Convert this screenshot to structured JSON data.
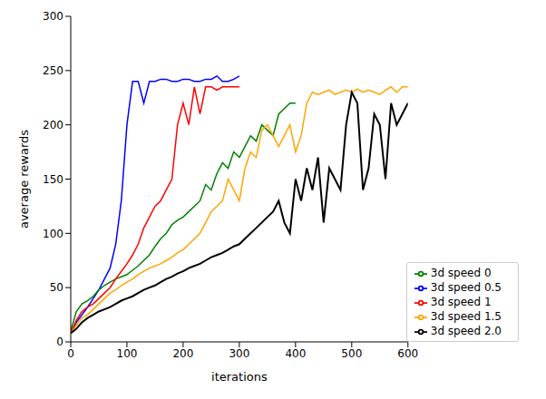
{
  "chart_data": {
    "type": "line",
    "x_label": "iterations",
    "y_label": "average rewards",
    "xlim": [
      0,
      600
    ],
    "xticks": [
      0,
      100,
      200,
      300,
      400,
      500,
      600
    ],
    "ylim": [
      0,
      300
    ],
    "yticks": [
      0,
      50,
      100,
      150,
      200,
      250,
      300
    ],
    "grid": false,
    "legend": "lower right",
    "x": [
      0,
      10,
      20,
      30,
      40,
      50,
      60,
      70,
      80,
      90,
      100,
      110,
      120,
      130,
      140,
      150,
      160,
      170,
      180,
      190,
      200,
      210,
      220,
      230,
      240,
      250,
      260,
      270,
      280,
      290,
      300,
      310,
      320,
      330,
      340,
      350,
      360,
      370,
      380,
      390,
      400,
      410,
      420,
      430,
      440,
      450,
      460,
      470,
      480,
      490,
      500,
      510,
      520,
      530,
      540,
      550,
      560,
      570,
      580,
      590,
      600
    ],
    "series": [
      {
        "name": "3d speed 0.5",
        "color": "#0000ff",
        "values": [
          8,
          18,
          25,
          32,
          40,
          48,
          58,
          68,
          90,
          130,
          200,
          240,
          240,
          220,
          240,
          240,
          242,
          242,
          240,
          240,
          242,
          242,
          240,
          240,
          242,
          242,
          245,
          240,
          240,
          242,
          245,
          null,
          null,
          null,
          null,
          null,
          null,
          null,
          null,
          null,
          null,
          null,
          null,
          null,
          null,
          null,
          null,
          null,
          null,
          null,
          null,
          null,
          null,
          null,
          null,
          null,
          null,
          null,
          null,
          null,
          null
        ]
      },
      {
        "name": "3d speed 0",
        "color": "#008000",
        "values": [
          10,
          28,
          35,
          38,
          42,
          48,
          52,
          55,
          58,
          60,
          62,
          66,
          70,
          75,
          80,
          88,
          95,
          100,
          108,
          112,
          115,
          120,
          125,
          130,
          145,
          140,
          155,
          165,
          160,
          175,
          170,
          180,
          190,
          185,
          200,
          195,
          190,
          210,
          215,
          220,
          220,
          null,
          null,
          null,
          null,
          null,
          null,
          null,
          null,
          null,
          null,
          null,
          null,
          null,
          null,
          null,
          null,
          null,
          null,
          null,
          null
        ]
      },
      {
        "name": "3d speed 1",
        "color": "#ff0000",
        "values": [
          8,
          20,
          28,
          32,
          35,
          40,
          45,
          50,
          58,
          65,
          72,
          80,
          90,
          105,
          115,
          125,
          130,
          140,
          150,
          200,
          220,
          200,
          235,
          210,
          235,
          235,
          232,
          235,
          235,
          235,
          235,
          null,
          null,
          null,
          null,
          null,
          null,
          null,
          null,
          null,
          null,
          null,
          null,
          null,
          null,
          null,
          null,
          null,
          null,
          null,
          null,
          null,
          null,
          null,
          null,
          null,
          null,
          null,
          null,
          null,
          null
        ]
      },
      {
        "name": "3d speed 1.5",
        "color": "#ffa500",
        "values": [
          8,
          15,
          22,
          25,
          30,
          35,
          40,
          45,
          48,
          52,
          55,
          58,
          62,
          65,
          68,
          70,
          72,
          75,
          78,
          82,
          85,
          90,
          95,
          100,
          110,
          120,
          125,
          130,
          150,
          140,
          130,
          160,
          175,
          170,
          195,
          200,
          190,
          180,
          190,
          200,
          175,
          190,
          220,
          230,
          228,
          230,
          232,
          228,
          230,
          232,
          230,
          233,
          230,
          232,
          230,
          228,
          232,
          235,
          230,
          235,
          235
        ]
      },
      {
        "name": "3d speed 2.0",
        "color": "#000000",
        "values": [
          8,
          12,
          18,
          22,
          25,
          28,
          30,
          32,
          35,
          38,
          40,
          42,
          45,
          48,
          50,
          52,
          55,
          58,
          60,
          63,
          65,
          68,
          70,
          72,
          75,
          78,
          80,
          82,
          85,
          88,
          90,
          95,
          100,
          105,
          110,
          115,
          120,
          130,
          110,
          100,
          150,
          130,
          160,
          140,
          170,
          110,
          160,
          150,
          140,
          200,
          230,
          220,
          140,
          160,
          210,
          200,
          150,
          220,
          200,
          210,
          220
        ]
      }
    ]
  }
}
